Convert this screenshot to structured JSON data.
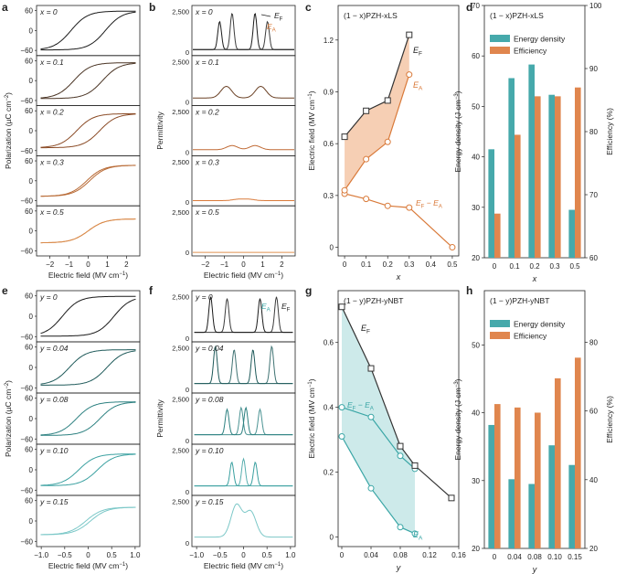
{
  "colors": {
    "dark": "#222222",
    "orange": "#d97a3a",
    "teal": "#3aa6a6",
    "teal_light": "#8fd0d0",
    "teal_shade": "#cdeaea",
    "orange_shade": "#f6cfb4",
    "orange_bar": "#e0864e",
    "teal_bar": "#46a9ab"
  },
  "chart_data": [
    {
      "id": "a",
      "panel_label": "a",
      "type": "line",
      "xlabel": "Electric field (MV cm",
      "xlabel_unit_sup": "−1",
      "ylabel": "Polarization (µC cm",
      "ylabel_unit_sup": "−2",
      "xticks": [
        "−2",
        "−1",
        "0",
        "1",
        "2"
      ],
      "yticks": [
        "−60",
        "0",
        "60"
      ],
      "xlim": [
        -2.7,
        2.7
      ],
      "ylim": [
        -70,
        70
      ],
      "subpanels": [
        {
          "label": "x = 0",
          "pmax": 65,
          "ec": 0.9,
          "loop": true
        },
        {
          "label": "x = 0.1",
          "pmax": 60,
          "ec": 0.75,
          "loop": true
        },
        {
          "label": "x = 0.2",
          "pmax": 57,
          "ec": 0.6,
          "loop": true
        },
        {
          "label": "x = 0.3",
          "pmax": 52,
          "ec": 0.3,
          "loop": false
        },
        {
          "label": "x = 0.5",
          "pmax": 40,
          "ec": 0,
          "loop": false
        }
      ]
    },
    {
      "id": "b",
      "panel_label": "b",
      "type": "line",
      "xlabel": "Electric field (MV cm",
      "xlabel_unit_sup": "−1",
      "ylabel": "Permittivity",
      "xticks": [
        "−2",
        "−1",
        "0",
        "1",
        "2"
      ],
      "ytick_labels": [
        "2,500",
        "0"
      ],
      "xlim": [
        -2.7,
        2.7
      ],
      "ylim": [
        0,
        2700
      ],
      "legend": {
        "ef": "E",
        "ef_sub": "F",
        "ea": "E",
        "ea_sub": "A"
      },
      "subpanels": [
        {
          "label": "x = 0",
          "peaks": [
            [
              -1.25,
              1700
            ],
            [
              -0.6,
              2200
            ],
            [
              0.6,
              2200
            ],
            [
              1.25,
              1700
            ]
          ],
          "base": 200
        },
        {
          "label": "x = 0.1",
          "peaks": [
            [
              -0.9,
              700
            ],
            [
              0.9,
              700
            ]
          ],
          "base": 300
        },
        {
          "label": "x = 0.2",
          "peaks": [
            [
              -0.6,
              250
            ],
            [
              0.6,
              250
            ]
          ],
          "base": 200
        },
        {
          "label": "x = 0.3",
          "peaks": [
            [
              -0.3,
              80
            ],
            [
              0.3,
              80
            ]
          ],
          "base": 150
        },
        {
          "label": "x = 0.5",
          "peaks": [],
          "base": 50
        }
      ]
    },
    {
      "id": "c",
      "panel_label": "c",
      "type": "line",
      "title": "(1 − x)PZH-xLS",
      "xlabel": "x",
      "ylabel": "Electric field (MV cm",
      "ylabel_unit_sup": "−1",
      "x": [
        0,
        0.1,
        0.2,
        0.3
      ],
      "xticks": [
        "0",
        "0.1",
        "0.2",
        "0.3",
        "0.4",
        "0.5"
      ],
      "yticks": [
        "0",
        "0.3",
        "0.6",
        "0.9",
        "1.2"
      ],
      "xlim": [
        -0.03,
        0.53
      ],
      "ylim": [
        -0.05,
        1.4
      ],
      "series": [
        {
          "name": "EF",
          "label": "E",
          "sub": "F",
          "x": [
            0,
            0.1,
            0.2,
            0.3
          ],
          "values": [
            0.64,
            0.79,
            0.85,
            1.23
          ]
        },
        {
          "name": "EA",
          "label": "E",
          "sub": "A",
          "x": [
            0,
            0.1,
            0.2,
            0.3
          ],
          "values": [
            0.33,
            0.51,
            0.61,
            1.0
          ]
        },
        {
          "name": "EF-EA",
          "label": "E",
          "sub": "F",
          "label2": " − E",
          "sub2": "A",
          "x": [
            0,
            0.1,
            0.2,
            0.3,
            0.5
          ],
          "values": [
            0.31,
            0.28,
            0.24,
            0.23,
            0.0
          ]
        }
      ]
    },
    {
      "id": "d",
      "panel_label": "d",
      "type": "bar",
      "title": "(1 − x)PZH-xLS",
      "categories": [
        "0",
        "0.1",
        "0.2",
        "0.3",
        "0.5"
      ],
      "xlabel": "x",
      "ylabel": "Energy density (J cm",
      "ylabel_unit_sup": "−3",
      "ylabel_right": "Efficiency (%)",
      "yticks": [
        "20",
        "30",
        "40",
        "50",
        "60",
        "70"
      ],
      "yticks_right": [
        "60",
        "70",
        "80",
        "90",
        "100"
      ],
      "ylim": [
        20,
        70
      ],
      "ylim_right": [
        60,
        100
      ],
      "series": [
        {
          "name": "Energy density",
          "values": [
            41.5,
            55.6,
            58.3,
            52.3,
            29.5
          ]
        },
        {
          "name": "Efficiency",
          "values": [
            67.0,
            79.5,
            85.6,
            85.6,
            87.0
          ]
        }
      ]
    },
    {
      "id": "e",
      "panel_label": "e",
      "type": "line",
      "xlabel": "Electric field (MV cm",
      "xlabel_unit_sup": "−1",
      "ylabel": "Polarization (µC cm",
      "ylabel_unit_sup": "−2",
      "xticks": [
        "−1.0",
        "−0.5",
        "0",
        "0.5",
        "1.0"
      ],
      "yticks": [
        "−60",
        "0",
        "60"
      ],
      "xlim": [
        -1.1,
        1.1
      ],
      "ylim": [
        -70,
        70
      ],
      "subpanels": [
        {
          "label": "y = 0",
          "pmax": 65,
          "ec": 0.55,
          "loop": true
        },
        {
          "label": "y = 0.04",
          "pmax": 58,
          "ec": 0.4,
          "loop": true
        },
        {
          "label": "y = 0.08",
          "pmax": 55,
          "ec": 0.25,
          "loop": true
        },
        {
          "label": "y = 0.10",
          "pmax": 52,
          "ec": 0.2,
          "loop": true
        },
        {
          "label": "y = 0.15",
          "pmax": 45,
          "ec": 0.05,
          "loop": true
        }
      ]
    },
    {
      "id": "f",
      "panel_label": "f",
      "type": "line",
      "xlabel": "Electric field (MV cm",
      "xlabel_unit_sup": "−1",
      "ylabel": "Permittivity",
      "xticks": [
        "−1.0",
        "−0.5",
        "0",
        "0.5",
        "1.0"
      ],
      "ytick_labels": [
        "2,500",
        "0"
      ],
      "xlim": [
        -1.1,
        1.1
      ],
      "ylim": [
        0,
        2700
      ],
      "legend": {
        "ef": "E",
        "ef_sub": "F",
        "ea": "E",
        "ea_sub": "A"
      },
      "subpanels": [
        {
          "label": "y = 0",
          "peaks": [
            [
              -0.7,
              2100
            ],
            [
              -0.35,
              2000
            ],
            [
              0.35,
              2000
            ],
            [
              0.7,
              2100
            ]
          ],
          "base": 400
        },
        {
          "label": "y = 0.04",
          "peaks": [
            [
              -0.6,
              2200
            ],
            [
              -0.2,
              2000
            ],
            [
              0.2,
              2000
            ],
            [
              0.6,
              2200
            ]
          ],
          "base": 400
        },
        {
          "label": "y = 0.08",
          "peaks": [
            [
              -0.35,
              1500
            ],
            [
              -0.05,
              1600
            ],
            [
              0.05,
              1600
            ],
            [
              0.35,
              1500
            ]
          ],
          "base": 400
        },
        {
          "label": "y = 0.10",
          "peaks": [
            [
              -0.25,
              1400
            ],
            [
              0,
              1600
            ],
            [
              0.25,
              1400
            ]
          ],
          "base": 400
        },
        {
          "label": "y = 0.15",
          "peaks": [
            [
              -0.15,
              1900
            ],
            [
              0.15,
              1500
            ]
          ],
          "base": 400
        }
      ]
    },
    {
      "id": "g",
      "panel_label": "g",
      "type": "line",
      "title": "(1 − y)PZH-yNBT",
      "xlabel": "y",
      "ylabel": "Electric field (MV cm",
      "ylabel_unit_sup": "−1",
      "xticks": [
        "0",
        "0.04",
        "0.08",
        "0.12",
        "0.16"
      ],
      "yticks": [
        "0",
        "0.2",
        "0.4",
        "0.6"
      ],
      "xlim": [
        -0.005,
        0.16
      ],
      "ylim": [
        -0.03,
        0.76
      ],
      "series": [
        {
          "name": "EF",
          "label": "E",
          "sub": "F",
          "x": [
            0,
            0.04,
            0.08,
            0.1,
            0.15
          ],
          "values": [
            0.71,
            0.52,
            0.28,
            0.22,
            0.12
          ]
        },
        {
          "name": "EA",
          "label": "E",
          "sub": "A",
          "x": [
            0,
            0.04,
            0.08,
            0.1
          ],
          "values": [
            0.31,
            0.15,
            0.03,
            0.01
          ]
        },
        {
          "name": "EF-EA",
          "label": "E",
          "sub": "F",
          "label2": " − E",
          "sub2": "A",
          "x": [
            0,
            0.04,
            0.08,
            0.1
          ],
          "values": [
            0.4,
            0.37,
            0.25,
            0.21
          ]
        }
      ]
    },
    {
      "id": "h",
      "panel_label": "h",
      "type": "bar",
      "title": "(1 − y)PZH-yNBT",
      "categories": [
        "0",
        "0.04",
        "0.08",
        "0.10",
        "0.15"
      ],
      "xlabel": "y",
      "ylabel": "Energy density (J cm",
      "ylabel_unit_sup": "−3",
      "ylabel_right": "Efficiency (%)",
      "yticks": [
        "20",
        "30",
        "40",
        "50"
      ],
      "yticks_right": [
        "20",
        "40",
        "60",
        "80"
      ],
      "ylim": [
        20,
        58
      ],
      "ylim_right": [
        20,
        95
      ],
      "series": [
        {
          "name": "Energy density",
          "values": [
            38.2,
            30.2,
            29.5,
            35.2,
            32.3
          ]
        },
        {
          "name": "Efficiency",
          "values": [
            62.0,
            61.0,
            59.5,
            69.5,
            75.5
          ]
        }
      ]
    }
  ]
}
